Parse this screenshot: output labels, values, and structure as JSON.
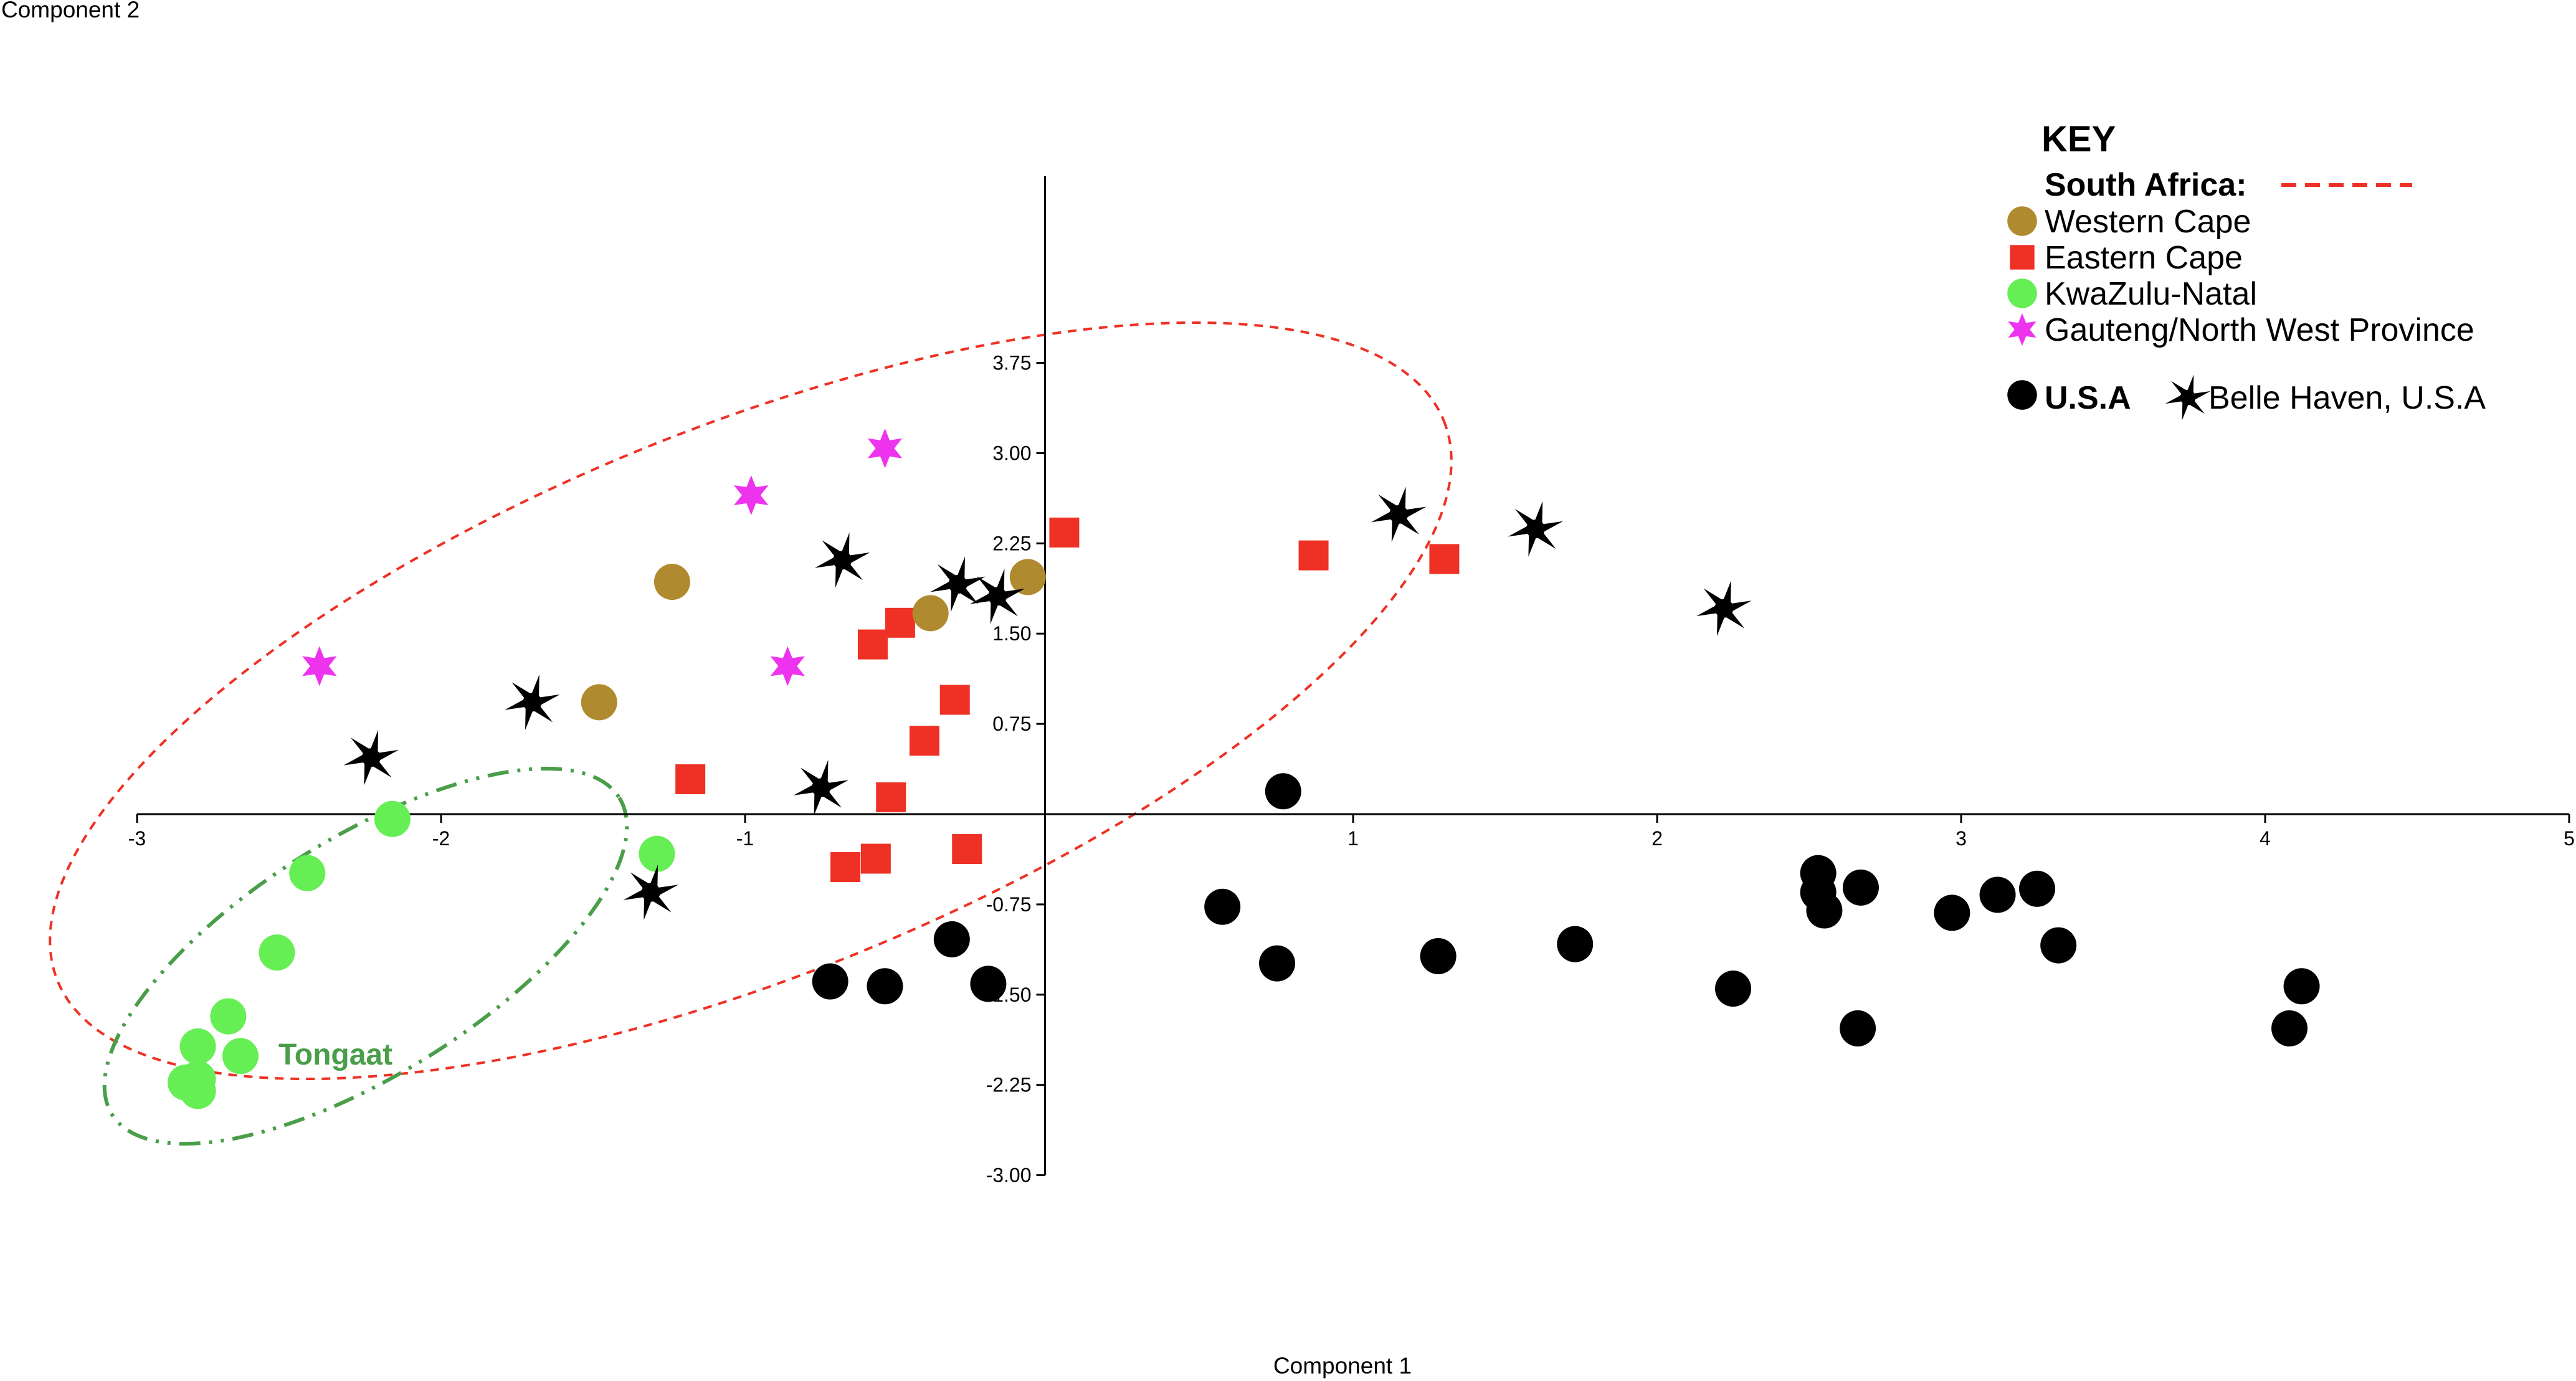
{
  "chart_data": {
    "type": "scatter",
    "xlabel": "Component 1",
    "ylabel": "Component 2",
    "xlim": [
      -3,
      5
    ],
    "ylim": [
      -3,
      4
    ],
    "x_ticks": [
      "-3",
      "-2",
      "-1",
      "1",
      "2",
      "3",
      "4",
      "5"
    ],
    "y_ticks": [
      "3.75",
      "3.00",
      "2.25",
      "1.50",
      "0.75",
      "-0.75",
      "-1.50",
      "-2.25",
      "-3.00"
    ],
    "colors": {
      "western_cape": "#b08a2e",
      "eastern_cape": "#ee3124",
      "kwazulu_natal": "#66ee55",
      "gauteng": "#ee33ee",
      "usa": "#000000",
      "south_africa_line": "#ee3124",
      "tongaat_line": "#4a9e4a"
    },
    "legend": {
      "title": "KEY",
      "south_africa": "South Africa:",
      "western_cape": "Western Cape",
      "eastern_cape": "Eastern Cape",
      "kwazulu_natal": "KwaZulu-Natal",
      "gauteng": "Gauteng/North West Province",
      "usa": "U.S.A",
      "belle_haven": "Belle Haven, U.S.A"
    },
    "annotations": {
      "tongaat": "Tongaat"
    },
    "series": [
      {
        "id": "western_cape",
        "marker": "circle",
        "x": [
          -1.24,
          -1.48,
          -0.39,
          -0.07
        ],
        "y": [
          1.93,
          0.93,
          1.67,
          1.97
        ]
      },
      {
        "id": "eastern_cape",
        "marker": "square",
        "x": [
          0.05,
          0.87,
          1.3,
          -0.58,
          -0.49,
          -0.31,
          -0.41,
          -1.18,
          -0.52,
          -0.27,
          -0.67,
          -0.57
        ],
        "y": [
          2.34,
          2.15,
          2.12,
          1.41,
          1.59,
          0.95,
          0.61,
          0.29,
          0.14,
          -0.29,
          -0.44,
          -0.37
        ]
      },
      {
        "id": "kwazulu_natal",
        "marker": "circle",
        "x": [
          -2.16,
          -2.44,
          -1.29,
          -2.54,
          -2.7,
          -2.8,
          -2.66,
          -2.84,
          -2.8,
          -2.8
        ],
        "y": [
          -0.04,
          -0.49,
          -0.33,
          -1.15,
          -1.68,
          -1.93,
          -2.01,
          -2.23,
          -2.2,
          -2.3
        ]
      },
      {
        "id": "gauteng",
        "marker": "star",
        "x": [
          -0.54,
          -0.98,
          -2.4,
          -0.86
        ],
        "y": [
          3.04,
          2.65,
          1.23,
          1.23
        ]
      },
      {
        "id": "usa",
        "marker": "circle",
        "x": [
          0.77,
          0.57,
          0.75,
          1.28,
          1.73,
          2.25,
          2.53,
          2.53,
          2.55,
          2.67,
          2.66,
          2.97,
          3.12,
          3.25,
          3.32,
          4.12,
          4.08,
          -0.32,
          -0.72,
          -0.54,
          -0.2
        ],
        "y": [
          0.19,
          -0.77,
          -1.24,
          -1.18,
          -1.08,
          -1.45,
          -0.49,
          -0.65,
          -0.8,
          -0.61,
          -1.78,
          -0.82,
          -0.67,
          -0.62,
          -1.09,
          -1.43,
          -1.78,
          -1.04,
          -1.39,
          -1.43,
          -1.41
        ]
      },
      {
        "id": "belle_haven",
        "marker": "spiky-star",
        "x": [
          1.15,
          1.6,
          2.22,
          -0.68,
          -0.3,
          -0.17,
          -1.7,
          -2.23,
          -0.75,
          -1.31
        ],
        "y": [
          2.49,
          2.37,
          1.71,
          2.11,
          1.91,
          1.81,
          0.93,
          0.47,
          0.22,
          -0.65
        ]
      }
    ]
  }
}
